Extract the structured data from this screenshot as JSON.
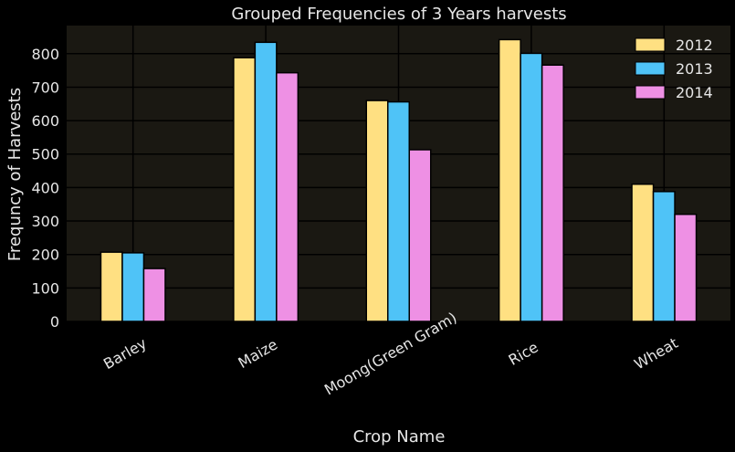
{
  "chart_data": {
    "type": "bar",
    "title": "Grouped Frequencies of 3 Years harvests",
    "xlabel": "Crop Name",
    "ylabel": "Frequncy of Harvests",
    "categories": [
      "Barley",
      "Maize",
      "Moong(Green Gram)",
      "Rice",
      "Wheat"
    ],
    "series": [
      {
        "name": "2012",
        "color": "#ffe082",
        "values": [
          207,
          788,
          660,
          842,
          410
        ]
      },
      {
        "name": "2013",
        "color": "#4fc3f7",
        "values": [
          205,
          834,
          656,
          801,
          388
        ]
      },
      {
        "name": "2014",
        "color": "#ee90e4",
        "values": [
          158,
          743,
          513,
          766,
          320
        ]
      }
    ],
    "yticks": [
      "0",
      "100",
      "200",
      "300",
      "400",
      "500",
      "600",
      "700",
      "800"
    ],
    "ylim": [
      0,
      884
    ],
    "grid": true,
    "legend_position": "top-right",
    "colors": {
      "background": "#000000",
      "plot_background": "#1a1812",
      "grid": "#000000",
      "text": "#e6e6e6"
    }
  }
}
